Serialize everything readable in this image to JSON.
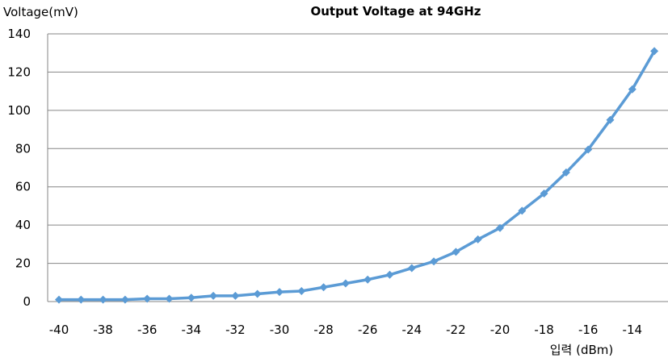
{
  "chart_data": {
    "type": "line",
    "title": "Output Voltage  at 94GHz",
    "ylabel": "Voltage(mV)",
    "xlabel": "입력 (dBm)",
    "xlim": [
      -40,
      -13
    ],
    "ylim": [
      0,
      140
    ],
    "grid": true,
    "legend": "none",
    "x_ticks": [
      -40,
      -38,
      -36,
      -34,
      -32,
      -30,
      -28,
      -26,
      -24,
      -22,
      -20,
      -18,
      -16,
      -14
    ],
    "y_ticks": [
      0,
      20,
      40,
      60,
      80,
      100,
      120,
      140
    ],
    "series": [
      {
        "color": "#5b9bd5",
        "marker": "diamond",
        "x": [
          -40,
          -39,
          -38,
          -37,
          -36,
          -35,
          -34,
          -33,
          -32,
          -31,
          -30,
          -29,
          -28,
          -27,
          -26,
          -25,
          -24,
          -23,
          -22,
          -21,
          -20,
          -19,
          -18,
          -17,
          -16,
          -15,
          -14,
          -13
        ],
        "values": [
          1,
          1,
          1,
          1,
          1.5,
          1.5,
          2,
          3,
          3,
          4,
          5,
          5.5,
          7.5,
          9.5,
          11.5,
          14,
          17.5,
          21,
          26,
          32.5,
          38.5,
          47.5,
          56.5,
          67.5,
          79.5,
          95,
          111,
          131
        ]
      }
    ]
  }
}
